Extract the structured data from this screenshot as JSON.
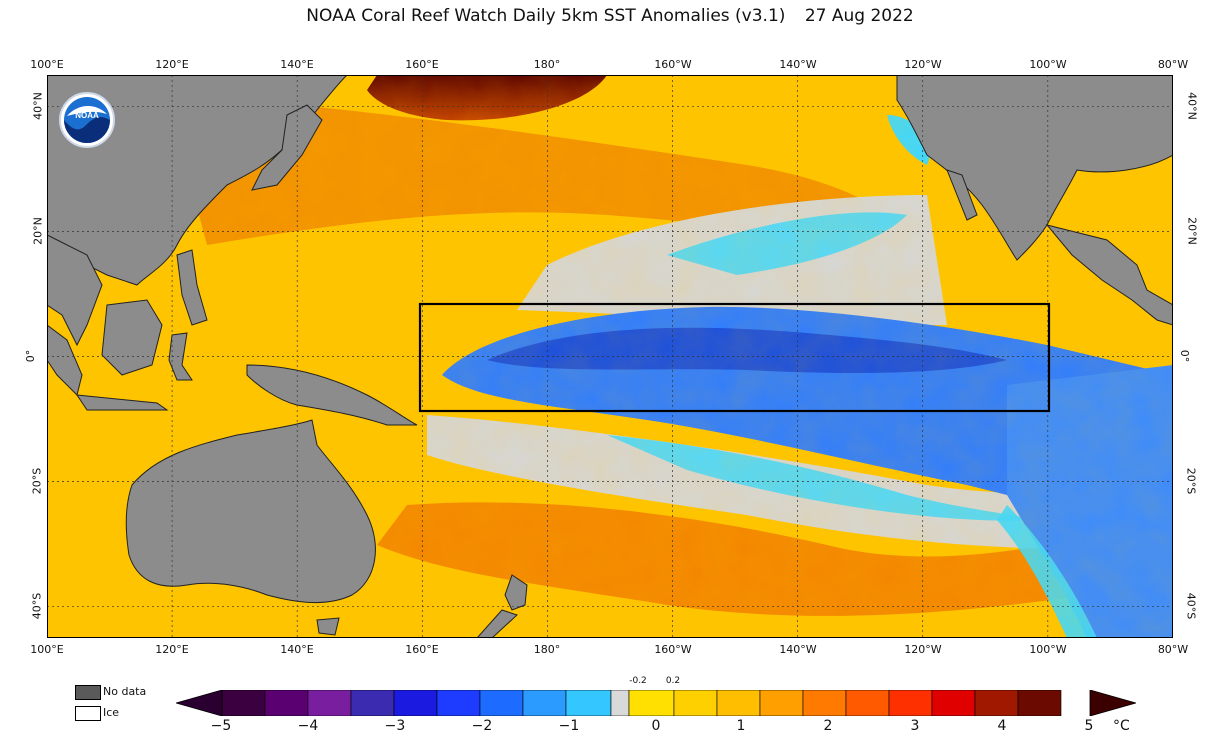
{
  "title": {
    "main": "NOAA Coral Reef Watch Daily 5km SST Anomalies  (v3.1)",
    "date": "27 Aug 2022"
  },
  "logo": {
    "text": "NOAA"
  },
  "axes": {
    "lon_labels": [
      "100°E",
      "120°E",
      "140°E",
      "160°E",
      "180°",
      "160°W",
      "140°W",
      "120°W",
      "100°W",
      "80°W"
    ],
    "lat_labels_left": [
      "40°N",
      "20°N",
      "0°",
      "20°S",
      "40°S"
    ],
    "lat_labels_right": [
      "40°N",
      "20°N",
      "0°",
      "20°S",
      "40°S"
    ]
  },
  "legend": {
    "no_data_label": "No data",
    "ice_label": "Ice",
    "no_data_color": "#5a5a5a",
    "ice_color": "#ffffff"
  },
  "colorbar": {
    "ticks": [
      "−5",
      "−4",
      "−3",
      "−2",
      "−1",
      "0",
      "1",
      "2",
      "3",
      "4",
      "5"
    ],
    "neutral_low": "-0.2",
    "neutral_high": "0.2",
    "unit": "°C",
    "colors": {
      "cold_extreme": "#2a0030",
      "cold": "#0000b0",
      "cool": "#1e90ff",
      "neutral": "#d9d9d9",
      "warm": "#ffd500",
      "hot": "#ff4500",
      "hot_extreme": "#3b0000"
    }
  },
  "map_colors": {
    "land": "#8c8c8c",
    "ocean_warm": "#ffc400",
    "ocean_hot": "#f57c00",
    "ocean_cold": "#2f7dff",
    "ocean_neutral": "#d6d6d6",
    "nino_box": "#000000"
  }
}
